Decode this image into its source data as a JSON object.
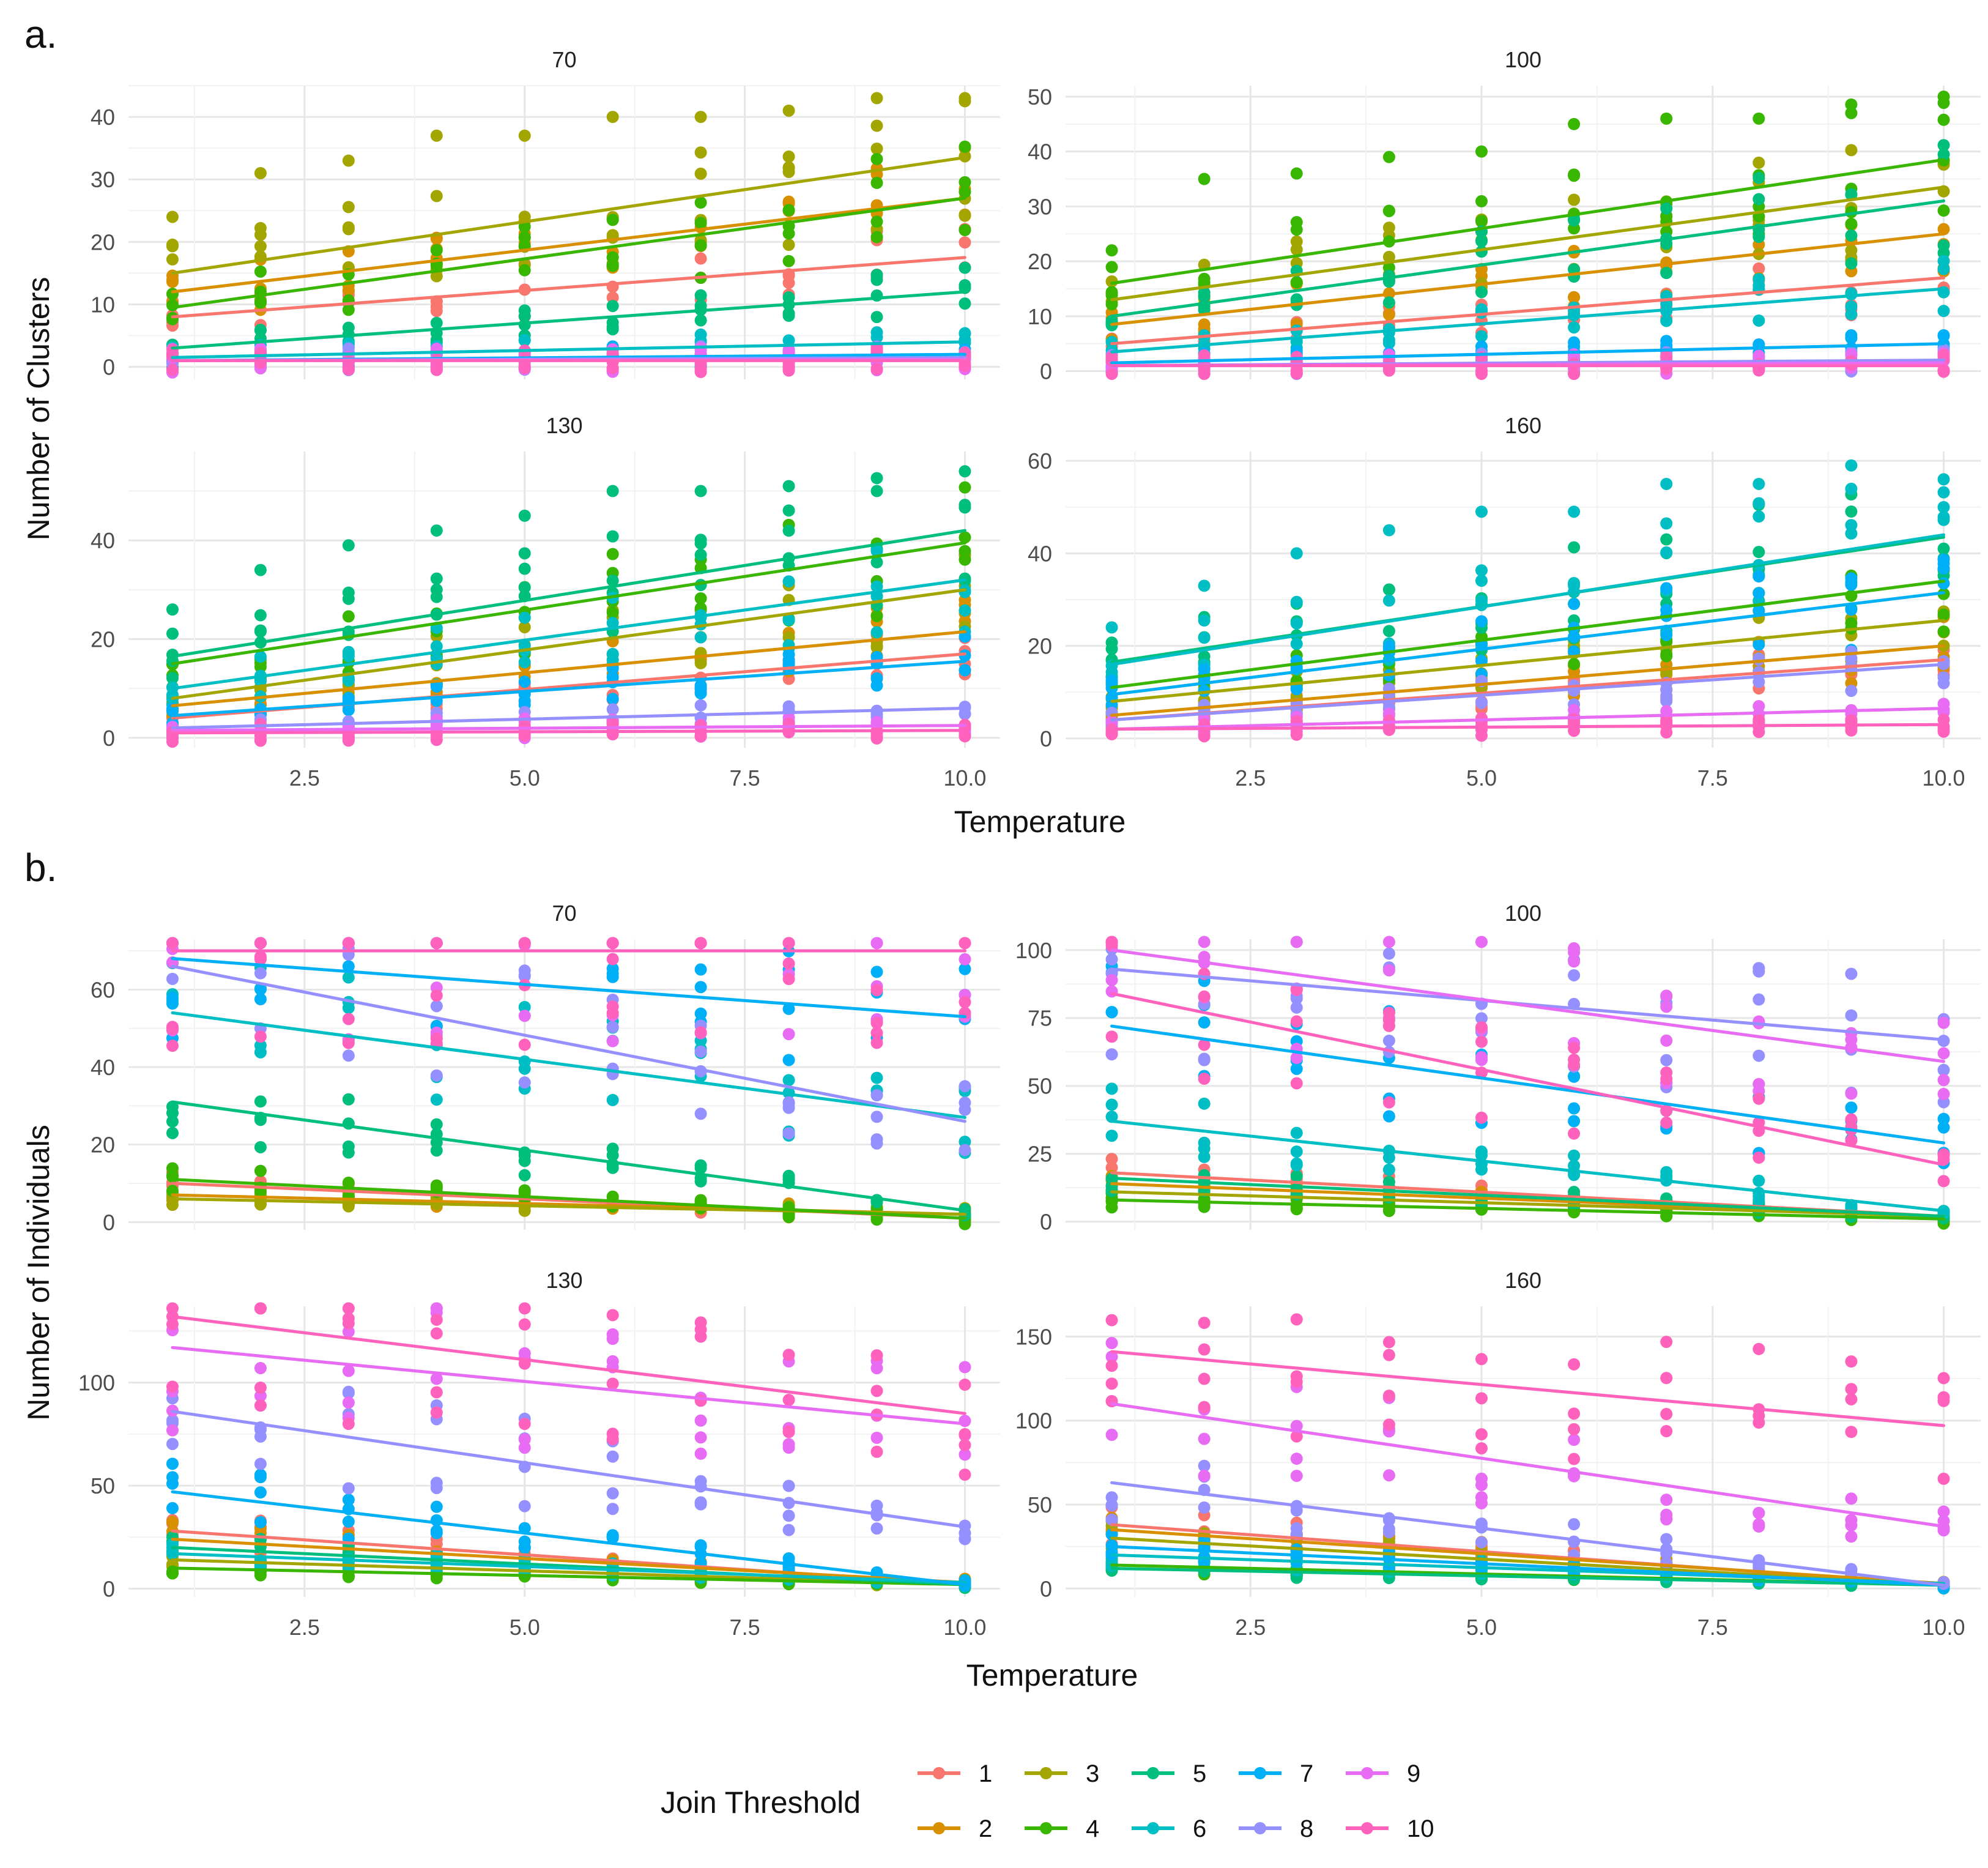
{
  "panel_labels": [
    "a.",
    "b."
  ],
  "legend": {
    "title": "Join Threshold",
    "entries": [
      "1",
      "2",
      "3",
      "4",
      "5",
      "6",
      "7",
      "8",
      "9",
      "10"
    ],
    "colors": [
      "#F8766D",
      "#D89000",
      "#A3A500",
      "#39B600",
      "#00BF7D",
      "#00BFC4",
      "#00B0F6",
      "#9590FF",
      "#E76BF3",
      "#FF62BC"
    ]
  },
  "chart_data": [
    {
      "type": "scatter",
      "panel": "a.",
      "xlabel": "Temperature",
      "ylabel": "Number of Clusters",
      "x_values": [
        1,
        2,
        3,
        4,
        5,
        6,
        7,
        8,
        9,
        10
      ],
      "xlim": [
        0.5,
        10.4
      ],
      "x_ticks": [
        "2.5",
        "5.0",
        "7.5",
        "10.0"
      ],
      "facets": [
        {
          "title": "70",
          "ylim": [
            -2,
            45
          ],
          "y_ticks": [
            "0",
            "10",
            "20",
            "30",
            "40"
          ],
          "fit_lines": [
            {
              "series": "1",
              "y_at_1": 8,
              "y_at_10": 17.5
            },
            {
              "series": "2",
              "y_at_1": 12,
              "y_at_10": 27
            },
            {
              "series": "3",
              "y_at_1": 15,
              "y_at_10": 33.5
            },
            {
              "series": "4",
              "y_at_1": 9.5,
              "y_at_10": 27
            },
            {
              "series": "5",
              "y_at_1": 3,
              "y_at_10": 12
            },
            {
              "series": "6",
              "y_at_1": 1.5,
              "y_at_10": 4
            },
            {
              "series": "7",
              "y_at_1": 1,
              "y_at_10": 2
            },
            {
              "series": "8",
              "y_at_1": 1,
              "y_at_10": 1.5
            },
            {
              "series": "9",
              "y_at_1": 1,
              "y_at_10": 1.2
            },
            {
              "series": "10",
              "y_at_1": 1,
              "y_at_10": 1
            }
          ],
          "max_points": [
            {
              "x": 1,
              "y": 24,
              "series": "3"
            },
            {
              "x": 2,
              "y": 31,
              "series": "3"
            },
            {
              "x": 3,
              "y": 33,
              "series": "3"
            },
            {
              "x": 4,
              "y": 37,
              "series": "3"
            },
            {
              "x": 5,
              "y": 37,
              "series": "3"
            },
            {
              "x": 6,
              "y": 40,
              "series": "3"
            },
            {
              "x": 7,
              "y": 40,
              "series": "3"
            },
            {
              "x": 8,
              "y": 41,
              "series": "3"
            },
            {
              "x": 9,
              "y": 43,
              "series": "3"
            },
            {
              "x": 10,
              "y": 43,
              "series": "3"
            }
          ]
        },
        {
          "title": "100",
          "ylim": [
            -1.5,
            52
          ],
          "y_ticks": [
            "0",
            "10",
            "20",
            "30",
            "40",
            "50"
          ],
          "fit_lines": [
            {
              "series": "1",
              "y_at_1": 5,
              "y_at_10": 17
            },
            {
              "series": "2",
              "y_at_1": 8.5,
              "y_at_10": 25
            },
            {
              "series": "3",
              "y_at_1": 13,
              "y_at_10": 33.5
            },
            {
              "series": "4",
              "y_at_1": 16,
              "y_at_10": 38.5
            },
            {
              "series": "5",
              "y_at_1": 10,
              "y_at_10": 31
            },
            {
              "series": "6",
              "y_at_1": 3.5,
              "y_at_10": 15
            },
            {
              "series": "7",
              "y_at_1": 1.5,
              "y_at_10": 5
            },
            {
              "series": "8",
              "y_at_1": 1,
              "y_at_10": 2
            },
            {
              "series": "9",
              "y_at_1": 1,
              "y_at_10": 1.5
            },
            {
              "series": "10",
              "y_at_1": 1,
              "y_at_10": 1
            }
          ],
          "max_points": [
            {
              "x": 1,
              "y": 22,
              "series": "4"
            },
            {
              "x": 2,
              "y": 35,
              "series": "4"
            },
            {
              "x": 3,
              "y": 36,
              "series": "4"
            },
            {
              "x": 4,
              "y": 39,
              "series": "4"
            },
            {
              "x": 5,
              "y": 40,
              "series": "4"
            },
            {
              "x": 6,
              "y": 45,
              "series": "4"
            },
            {
              "x": 7,
              "y": 46,
              "series": "4"
            },
            {
              "x": 8,
              "y": 46,
              "series": "4"
            },
            {
              "x": 9,
              "y": 47,
              "series": "4"
            },
            {
              "x": 10,
              "y": 50,
              "series": "4"
            }
          ]
        },
        {
          "title": "130",
          "ylim": [
            -2,
            58
          ],
          "y_ticks": [
            "0",
            "20",
            "40"
          ],
          "fit_lines": [
            {
              "series": "1",
              "y_at_1": 4,
              "y_at_10": 17
            },
            {
              "series": "2",
              "y_at_1": 6.5,
              "y_at_10": 21.5
            },
            {
              "series": "3",
              "y_at_1": 8,
              "y_at_10": 30
            },
            {
              "series": "4",
              "y_at_1": 15,
              "y_at_10": 39.5
            },
            {
              "series": "5",
              "y_at_1": 16.5,
              "y_at_10": 42
            },
            {
              "series": "6",
              "y_at_1": 10,
              "y_at_10": 32
            },
            {
              "series": "7",
              "y_at_1": 4.5,
              "y_at_10": 15.5
            },
            {
              "series": "8",
              "y_at_1": 2,
              "y_at_10": 6
            },
            {
              "series": "9",
              "y_at_1": 1.5,
              "y_at_10": 2.5
            },
            {
              "series": "10",
              "y_at_1": 1,
              "y_at_10": 1.5
            }
          ],
          "max_points": [
            {
              "x": 1,
              "y": 26,
              "series": "5"
            },
            {
              "x": 2,
              "y": 34,
              "series": "5"
            },
            {
              "x": 3,
              "y": 39,
              "series": "5"
            },
            {
              "x": 4,
              "y": 42,
              "series": "5"
            },
            {
              "x": 5,
              "y": 45,
              "series": "5"
            },
            {
              "x": 6,
              "y": 50,
              "series": "5"
            },
            {
              "x": 7,
              "y": 50,
              "series": "5"
            },
            {
              "x": 8,
              "y": 51,
              "series": "5"
            },
            {
              "x": 9,
              "y": 50,
              "series": "5"
            },
            {
              "x": 10,
              "y": 54,
              "series": "5"
            }
          ]
        },
        {
          "title": "160",
          "ylim": [
            -2,
            62
          ],
          "y_ticks": [
            "0",
            "20",
            "40",
            "60"
          ],
          "fit_lines": [
            {
              "series": "1",
              "y_at_1": 4,
              "y_at_10": 17
            },
            {
              "series": "2",
              "y_at_1": 5,
              "y_at_10": 20
            },
            {
              "series": "3",
              "y_at_1": 8,
              "y_at_10": 25.5
            },
            {
              "series": "4",
              "y_at_1": 11,
              "y_at_10": 34
            },
            {
              "series": "5",
              "y_at_1": 16.5,
              "y_at_10": 43.5
            },
            {
              "series": "6",
              "y_at_1": 16,
              "y_at_10": 44
            },
            {
              "series": "7",
              "y_at_1": 9.5,
              "y_at_10": 31.5
            },
            {
              "series": "8",
              "y_at_1": 4,
              "y_at_10": 16
            },
            {
              "series": "9",
              "y_at_1": 2,
              "y_at_10": 6.5
            },
            {
              "series": "10",
              "y_at_1": 2,
              "y_at_10": 3
            }
          ],
          "max_points": [
            {
              "x": 1,
              "y": 24,
              "series": "6"
            },
            {
              "x": 2,
              "y": 33,
              "series": "6"
            },
            {
              "x": 3,
              "y": 40,
              "series": "6"
            },
            {
              "x": 4,
              "y": 45,
              "series": "6"
            },
            {
              "x": 5,
              "y": 49,
              "series": "6"
            },
            {
              "x": 6,
              "y": 49,
              "series": "6"
            },
            {
              "x": 7,
              "y": 55,
              "series": "6"
            },
            {
              "x": 8,
              "y": 55,
              "series": "6"
            },
            {
              "x": 9,
              "y": 59,
              "series": "6"
            },
            {
              "x": 10,
              "y": 56,
              "series": "6"
            }
          ]
        }
      ]
    },
    {
      "type": "scatter",
      "panel": "b.",
      "xlabel": "Temperature",
      "ylabel": "Number of Individuals",
      "x_values": [
        1,
        2,
        3,
        4,
        5,
        6,
        7,
        8,
        9,
        10
      ],
      "xlim": [
        0.5,
        10.4
      ],
      "x_ticks": [
        "2.5",
        "5.0",
        "7.5",
        "10.0"
      ],
      "facets": [
        {
          "title": "70",
          "ylim": [
            -2,
            73
          ],
          "y_ticks": [
            "0",
            "20",
            "40",
            "60"
          ],
          "fit_lines": [
            {
              "series": "1",
              "y_at_1": 10,
              "y_at_10": 1
            },
            {
              "series": "2",
              "y_at_1": 7,
              "y_at_10": 2
            },
            {
              "series": "3",
              "y_at_1": 6,
              "y_at_10": 2
            },
            {
              "series": "4",
              "y_at_1": 11,
              "y_at_10": 1
            },
            {
              "series": "5",
              "y_at_1": 31,
              "y_at_10": 3
            },
            {
              "series": "6",
              "y_at_1": 54,
              "y_at_10": 27
            },
            {
              "series": "7",
              "y_at_1": 68,
              "y_at_10": 53
            },
            {
              "series": "8",
              "y_at_1": 66,
              "y_at_10": 26
            },
            {
              "series": "9",
              "y_at_1": 70,
              "y_at_10": 70
            },
            {
              "series": "10",
              "y_at_1": 70,
              "y_at_10": 70
            }
          ]
        },
        {
          "title": "100",
          "ylim": [
            -3,
            104
          ],
          "y_ticks": [
            "0",
            "25",
            "50",
            "75",
            "100"
          ],
          "fit_lines": [
            {
              "series": "1",
              "y_at_1": 18,
              "y_at_10": 2
            },
            {
              "series": "2",
              "y_at_1": 14,
              "y_at_10": 2
            },
            {
              "series": "3",
              "y_at_1": 11,
              "y_at_10": 2
            },
            {
              "series": "4",
              "y_at_1": 8,
              "y_at_10": 1
            },
            {
              "series": "5",
              "y_at_1": 16,
              "y_at_10": 2
            },
            {
              "series": "6",
              "y_at_1": 37,
              "y_at_10": 4
            },
            {
              "series": "7",
              "y_at_1": 72,
              "y_at_10": 29
            },
            {
              "series": "8",
              "y_at_1": 93,
              "y_at_10": 67
            },
            {
              "series": "9",
              "y_at_1": 100,
              "y_at_10": 59
            },
            {
              "series": "10",
              "y_at_1": 84,
              "y_at_10": 21
            }
          ]
        },
        {
          "title": "130",
          "ylim": [
            -4,
            137
          ],
          "y_ticks": [
            "0",
            "50",
            "100"
          ],
          "fit_lines": [
            {
              "series": "1",
              "y_at_1": 28,
              "y_at_10": 2
            },
            {
              "series": "2",
              "y_at_1": 24,
              "y_at_10": 3
            },
            {
              "series": "3",
              "y_at_1": 14,
              "y_at_10": 2
            },
            {
              "series": "4",
              "y_at_1": 10,
              "y_at_10": 2
            },
            {
              "series": "5",
              "y_at_1": 20,
              "y_at_10": 2
            },
            {
              "series": "6",
              "y_at_1": 17,
              "y_at_10": 3
            },
            {
              "series": "7",
              "y_at_1": 47,
              "y_at_10": 2
            },
            {
              "series": "8",
              "y_at_1": 86,
              "y_at_10": 30
            },
            {
              "series": "9",
              "y_at_1": 117,
              "y_at_10": 80
            },
            {
              "series": "10",
              "y_at_1": 132,
              "y_at_10": 85
            }
          ]
        },
        {
          "title": "160",
          "ylim": [
            -5,
            168
          ],
          "y_ticks": [
            "0",
            "50",
            "100",
            "150"
          ],
          "fit_lines": [
            {
              "series": "1",
              "y_at_1": 38,
              "y_at_10": 2
            },
            {
              "series": "2",
              "y_at_1": 35,
              "y_at_10": 3
            },
            {
              "series": "3",
              "y_at_1": 30,
              "y_at_10": 2
            },
            {
              "series": "4",
              "y_at_1": 14,
              "y_at_10": 2
            },
            {
              "series": "5",
              "y_at_1": 12,
              "y_at_10": 2
            },
            {
              "series": "6",
              "y_at_1": 20,
              "y_at_10": 3
            },
            {
              "series": "7",
              "y_at_1": 25,
              "y_at_10": 2
            },
            {
              "series": "8",
              "y_at_1": 63,
              "y_at_10": 2
            },
            {
              "series": "9",
              "y_at_1": 110,
              "y_at_10": 37
            },
            {
              "series": "10",
              "y_at_1": 141,
              "y_at_10": 97
            }
          ]
        }
      ]
    }
  ]
}
